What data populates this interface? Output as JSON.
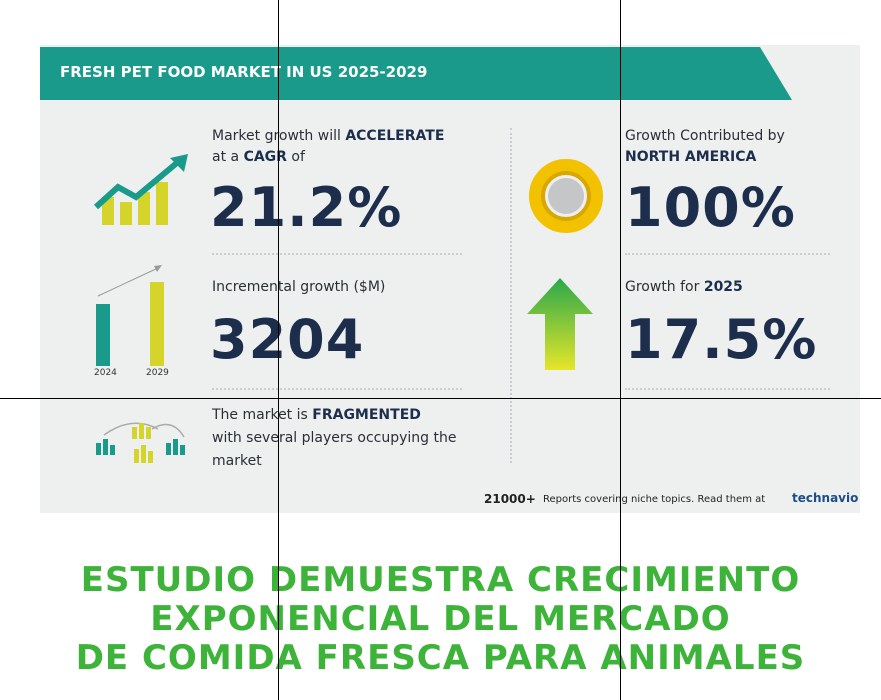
{
  "header": {
    "title": "FRESH PET FOOD MARKET IN US 2025-2029"
  },
  "cagr": {
    "label": [
      "Market growth will",
      "ACCELERATE",
      "at a",
      "CAGR",
      "of"
    ],
    "value": "21.2%"
  },
  "incremental": {
    "label": "Incremental growth ($M)",
    "value": "3204",
    "years": [
      "2024",
      "2029"
    ]
  },
  "market": {
    "label": [
      "The market is",
      "FRAGMENTED",
      "with several players occupying the",
      "market"
    ]
  },
  "region": {
    "label": [
      "Growth Contributed by",
      "NORTH AMERICA"
    ],
    "value": "100%"
  },
  "growth": {
    "label": [
      "Growth for",
      "2025"
    ],
    "value": "17.5%"
  },
  "footer": {
    "count": "21000+",
    "text": "Reports covering niche topics. Read them at",
    "brand": "technavio"
  },
  "headline": [
    "ESTUDIO DEMUESTRA CRECIMIENTO",
    "EXPONENCIAL DEL MERCADO",
    "DE COMIDA FRESCA PARA ANIMALES"
  ]
}
